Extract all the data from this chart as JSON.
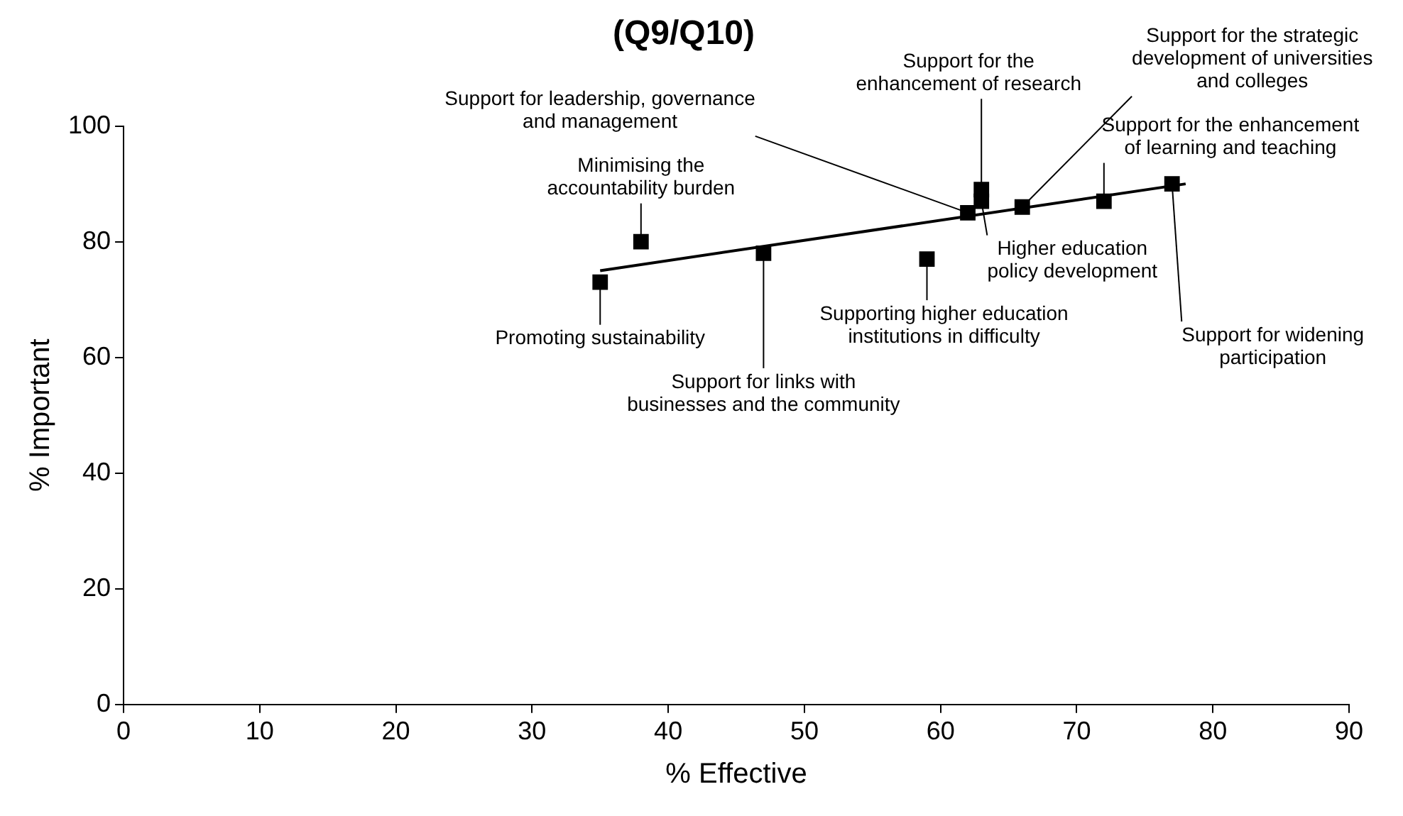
{
  "chart_data": {
    "type": "scatter",
    "title": "(Q9/Q10)",
    "xlabel": "% Effective",
    "ylabel": "% Important",
    "xlim": [
      0,
      90
    ],
    "xticks": [
      0,
      10,
      20,
      30,
      40,
      50,
      60,
      70,
      80,
      90
    ],
    "ylim": [
      0,
      100
    ],
    "yticks": [
      0,
      20,
      40,
      60,
      80,
      100
    ],
    "grid": false,
    "legend": false,
    "marker": "square",
    "series": [
      {
        "color": "#000000",
        "x": [
          35,
          38,
          47,
          59,
          62,
          63,
          63,
          66,
          72,
          77
        ],
        "values": [
          73,
          80,
          78,
          77,
          85,
          89,
          87,
          86,
          87,
          90
        ]
      },
      {
        "type": "line",
        "color": "#000000",
        "marker": "none",
        "x": [
          35,
          78
        ],
        "values": [
          75,
          90
        ]
      }
    ],
    "annotations": [
      {
        "text": "Promoting sustainability",
        "x": 35,
        "y": 73
      },
      {
        "text": "Minimising the\naccountability burden",
        "x": 38,
        "y": 80
      },
      {
        "text": "Support for links with\nbusinesses and the community",
        "x": 47,
        "y": 78
      },
      {
        "text": "Supporting higher education\ninstitutions in difficulty",
        "x": 59,
        "y": 77
      },
      {
        "text": "Support for leadership, governance\nand management",
        "x": 62,
        "y": 85
      },
      {
        "text": "Support for the\nenhancement of research",
        "x": 63,
        "y": 89
      },
      {
        "text": "Higher education\npolicy development",
        "x": 63,
        "y": 87
      },
      {
        "text": "Support for the strategic\ndevelopment of universities\nand colleges",
        "x": 66,
        "y": 86
      },
      {
        "text": "Support for the enhancement\nof learning and teaching",
        "x": 72,
        "y": 87
      },
      {
        "text": "Support for widening\nparticipation",
        "x": 77,
        "y": 90
      }
    ]
  }
}
